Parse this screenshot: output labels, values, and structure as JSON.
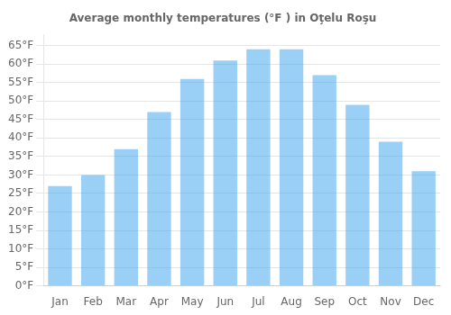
{
  "chart_data": {
    "type": "bar",
    "title": "Average monthly temperatures (°F ) in Oţelu Roşu",
    "categories": [
      "Jan",
      "Feb",
      "Mar",
      "Apr",
      "May",
      "Jun",
      "Jul",
      "Aug",
      "Sep",
      "Oct",
      "Nov",
      "Dec"
    ],
    "values": [
      27,
      30,
      37,
      47,
      56,
      61,
      64,
      64,
      57,
      49,
      39,
      31
    ],
    "ylim": [
      0,
      68
    ],
    "yticks": [
      {
        "value": 0,
        "label": "0°F"
      },
      {
        "value": 5,
        "label": "5°F"
      },
      {
        "value": 10,
        "label": "10°F"
      },
      {
        "value": 15,
        "label": "15°F"
      },
      {
        "value": 20,
        "label": "20°F"
      },
      {
        "value": 25,
        "label": "25°F"
      },
      {
        "value": 30,
        "label": "30°F"
      },
      {
        "value": 35,
        "label": "35°F"
      },
      {
        "value": 40,
        "label": "40°F"
      },
      {
        "value": 45,
        "label": "45°F"
      },
      {
        "value": 50,
        "label": "50°F"
      },
      {
        "value": 55,
        "label": "55°F"
      },
      {
        "value": 60,
        "label": "60°F"
      },
      {
        "value": 65,
        "label": "65°F"
      }
    ],
    "grid": true
  }
}
